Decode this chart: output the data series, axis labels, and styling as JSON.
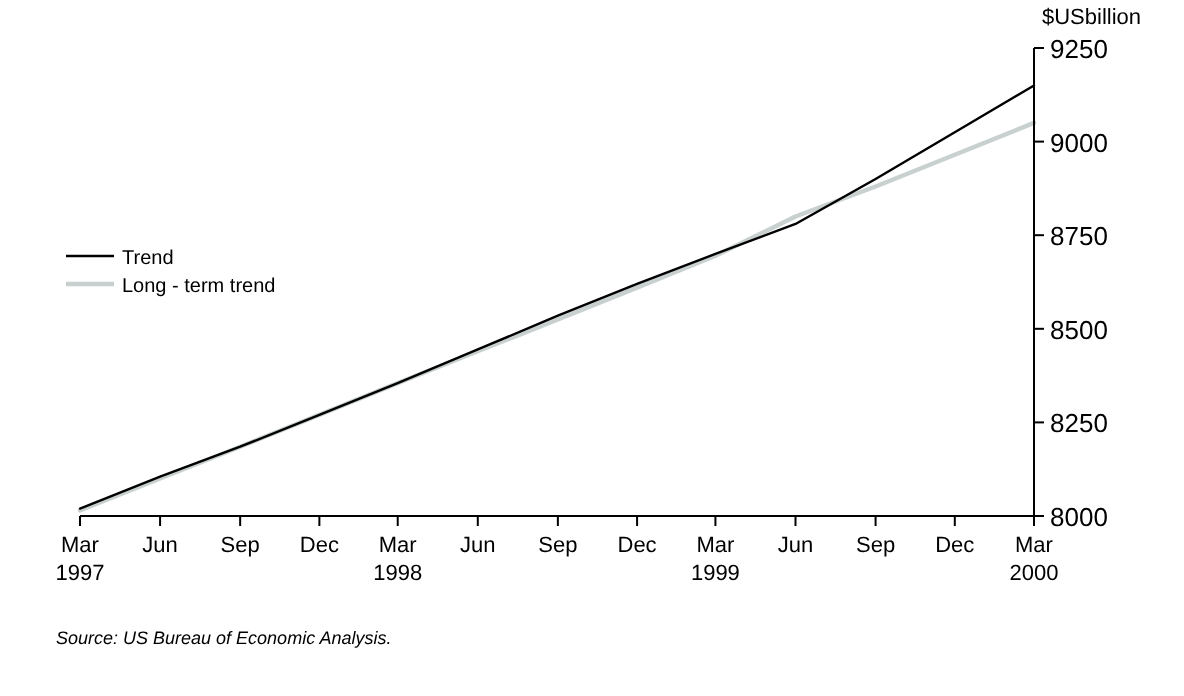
{
  "chart_data": {
    "type": "line",
    "ylabel": "$USbillion",
    "x": [
      "1997-03",
      "1997-06",
      "1997-09",
      "1997-12",
      "1998-03",
      "1998-06",
      "1998-09",
      "1998-12",
      "1999-03",
      "1999-06",
      "1999-09",
      "1999-12",
      "2000-03"
    ],
    "series": [
      {
        "name": "Trend",
        "color": "#000000",
        "values": [
          8020,
          8105,
          8185,
          8270,
          8355,
          8445,
          8535,
          8620,
          8700,
          8780,
          8900,
          9025,
          9150
        ]
      },
      {
        "name": "Long - term trend",
        "color": "#c8d0d0",
        "values": [
          8015,
          8100,
          8185,
          8270,
          8355,
          8440,
          8525,
          8610,
          8695,
          8800,
          8880,
          8965,
          9050
        ]
      }
    ],
    "xlim": [
      "1997-03",
      "2000-03"
    ],
    "xticks": [
      {
        "value": "1997-03",
        "label": "Mar\n1997"
      },
      {
        "value": "1997-06",
        "label": "Jun"
      },
      {
        "value": "1997-09",
        "label": "Sep"
      },
      {
        "value": "1997-12",
        "label": "Dec"
      },
      {
        "value": "1998-03",
        "label": "Mar\n1998"
      },
      {
        "value": "1998-06",
        "label": "Jun"
      },
      {
        "value": "1998-09",
        "label": "Sep"
      },
      {
        "value": "1998-12",
        "label": "Dec"
      },
      {
        "value": "1999-03",
        "label": "Mar\n1999"
      },
      {
        "value": "1999-06",
        "label": "Jun"
      },
      {
        "value": "1999-09",
        "label": "Sep"
      },
      {
        "value": "1999-12",
        "label": "Dec"
      },
      {
        "value": "2000-03",
        "label": "Mar\n2000"
      }
    ],
    "ylim": [
      8000,
      9250
    ],
    "yticks": [
      8000,
      8250,
      8500,
      8750,
      9000,
      9250
    ],
    "legend": "left",
    "grid": false,
    "marker": "none",
    "line_style": "solid",
    "annotations": [
      "Source: US Bureau of Economic Analysis."
    ]
  }
}
